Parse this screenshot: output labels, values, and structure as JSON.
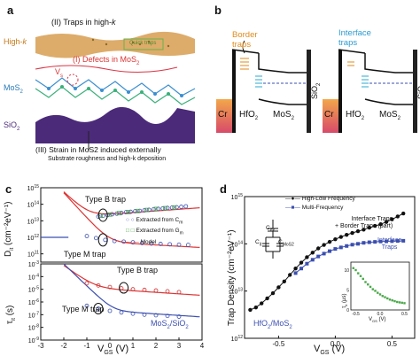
{
  "panels": {
    "a": {
      "label": "a",
      "traps_highk": "(II) Traps in high-",
      "traps_highk_k": "k",
      "highk": "High-",
      "highk_k": "k",
      "quick_traps": "Quick traps",
      "defects": "(I) Defects in MoS",
      "defects_sub": "2",
      "vs": "V",
      "vs_sub": "s",
      "mos2": "MoS",
      "mos2_sub": "2",
      "sio2": "SiO",
      "sio2_sub": "2",
      "strain": "(III) Strain in MoS2 induced externally",
      "strain2": "Substrate roughness and high-k deposition"
    },
    "b": {
      "label": "b",
      "border_traps": "Border traps",
      "interface_traps": "Interface traps",
      "cr": "Cr",
      "hfo2": "HfO",
      "hfo2_sub": "2",
      "mos2": "MoS",
      "mos2_sub": "2",
      "sio2": "SiO",
      "sio2_sub": "2"
    },
    "c": {
      "label": "c",
      "ylabel_top": "D",
      "ylabel_top_sub": "it",
      "ylabel_top_unit": " (cm⁻²eV⁻¹)",
      "ylabel_bot": "τ",
      "ylabel_bot_sub": "it",
      "ylabel_bot_unit": " (s)",
      "xlabel": "V",
      "xlabel_sub": "GS",
      "xlabel_unit": " (V)",
      "type_b_top": "Type B trap",
      "type_m_top": "Type M trap",
      "type_b_bot": "Type B trap",
      "type_m_bot": "Type M trap",
      "legend_cm": "Extracted from C",
      "legend_cm_sub": "m",
      "legend_gm": "Extracted from G",
      "legend_gm_sub": "m",
      "legend_model": "Model",
      "material": "MoS",
      "material_sub": "2",
      "material2": "/SiO",
      "material2_sub": "2",
      "yticks_top": [
        "10",
        "10",
        "10",
        "10",
        "10"
      ],
      "yticks_top_exp": [
        "15",
        "14",
        "13",
        "12",
        "11"
      ],
      "yticks_bot": [
        "10",
        "10",
        "10",
        "10",
        "10",
        "10",
        "10"
      ],
      "yticks_bot_exp": [
        "-3",
        "-4",
        "-5",
        "-6",
        "-7",
        "-8",
        "-9"
      ],
      "xticks": [
        "-3",
        "-2",
        "-1",
        "0",
        "1",
        "2",
        "3",
        "4"
      ]
    },
    "d": {
      "label": "d",
      "ylabel": "Trap Density (cm⁻²eV⁻¹)",
      "xlabel": "V",
      "xlabel_sub": "GS",
      "xlabel_unit": " (V)",
      "legend_hl": "High-Low Frequency",
      "legend_mf": "Multi-Frequency",
      "int_border": "Interface Traps",
      "int_border2": "+ Border Traps (part)",
      "interface": "Interface",
      "interface2": "Traps",
      "cox": "C",
      "cox_sub": "ox",
      "cit": "C",
      "cit_sub": "it",
      "cmos": "C",
      "cmos_sub": "MoS2",
      "material": "HfO",
      "material_sub": "2",
      "material2": "/MoS",
      "material2_sub": "2",
      "yticks": [
        "10",
        "10",
        "10",
        "10"
      ],
      "yticks_exp": [
        "15",
        "14",
        "13",
        "12"
      ],
      "xticks": [
        "-0.5",
        "0.0",
        "0.5"
      ],
      "inset_ylabel": "τ",
      "inset_ylabel_sub": "it",
      "inset_ylabel_unit": " (μs)",
      "inset_xlabel": "V",
      "inset_xlabel_sub": "GS",
      "inset_xlabel_unit": " (V)",
      "inset_yticks": [
        "10",
        "5",
        "0"
      ],
      "inset_xticks": [
        "-0.5",
        "0.0",
        "0.5"
      ]
    }
  },
  "chart_data": [
    {
      "type": "scatter",
      "panel": "c-top",
      "ylabel": "Dit (cm-2eV-1)",
      "xlabel": "VGS (V)",
      "xlim": [
        -3,
        4
      ],
      "ylim_log10": [
        10.5,
        15
      ],
      "series": [
        {
          "name": "Extracted from Cm",
          "marker": "open-circle",
          "color": "#3b4fb0",
          "x": [
            -0.5,
            -0.3,
            -0.1,
            0.1,
            0.3,
            0.5,
            0.7,
            0.9,
            1.1,
            1.3,
            1.5,
            1.7,
            1.9,
            2.1,
            2.3,
            2.5,
            2.7,
            2.9,
            3.1,
            3.3
          ],
          "y": [
            18000000000000.0,
            20000000000000.0,
            22000000000000.0,
            25000000000000.0,
            27000000000000.0,
            30000000000000.0,
            33000000000000.0,
            35000000000000.0,
            38000000000000.0,
            40000000000000.0,
            43000000000000.0,
            46000000000000.0,
            50000000000000.0,
            53000000000000.0,
            56000000000000.0,
            60000000000000.0,
            63000000000000.0,
            66000000000000.0,
            70000000000000.0,
            75000000000000.0
          ]
        },
        {
          "name": "Extracted from Gm",
          "marker": "open-square",
          "color": "#4aa84a",
          "x": [
            -0.4,
            0.0,
            0.4,
            0.8,
            1.2,
            1.6,
            2.0,
            2.4,
            2.8
          ],
          "y": [
            20000000000000.0,
            24000000000000.0,
            29000000000000.0,
            34000000000000.0,
            39000000000000.0,
            45000000000000.0,
            52000000000000.0,
            58000000000000.0,
            64000000000000.0
          ]
        },
        {
          "name": "Extracted from Cm (Type M)",
          "marker": "open-circle",
          "color": "#3b4fb0",
          "x": [
            -1.0,
            -0.6,
            -0.2,
            0.2,
            0.6,
            1.0,
            1.4,
            1.8,
            2.2,
            2.6,
            3.0,
            3.4
          ],
          "y": [
            1200000000000.0,
            900000000000.0,
            700000000000.0,
            600000000000.0,
            550000000000.0,
            500000000000.0,
            450000000000.0,
            420000000000.0,
            400000000000.0,
            380000000000.0,
            360000000000.0,
            350000000000.0
          ]
        }
      ]
    },
    {
      "type": "scatter",
      "panel": "c-bottom",
      "ylabel": "τit (s)",
      "xlabel": "VGS (V)",
      "xlim": [
        -3,
        4
      ],
      "ylim_log10": [
        -9,
        -3
      ],
      "series": [
        {
          "name": "Type B trap",
          "marker": "open-circle",
          "color": "#cc3333",
          "x": [
            -1.0,
            -0.5,
            0.0,
            0.5,
            1.0,
            1.5,
            2.0,
            2.5,
            3.0
          ],
          "y": [
            3e-05,
            2e-05,
            1.5e-05,
            1.2e-05,
            1e-05,
            9e-06,
            8e-06,
            7e-06,
            6e-06
          ]
        },
        {
          "name": "Type M trap",
          "marker": "open-circle",
          "color": "#3b4fb0",
          "x": [
            -1.0,
            -0.5,
            0.0,
            0.5,
            1.0,
            1.5,
            2.0,
            2.5,
            3.0
          ],
          "y": [
            5e-07,
            3e-07,
            2e-07,
            1.5e-07,
            1.2e-07,
            1e-07,
            9e-08,
            8e-08,
            7e-08
          ]
        }
      ]
    },
    {
      "type": "line",
      "panel": "d",
      "ylabel": "Trap Density (cm-2eV-1)",
      "xlabel": "VGS (V)",
      "xlim": [
        -0.8,
        0.7
      ],
      "ylim_log10": [
        12,
        15
      ],
      "series": [
        {
          "name": "High-Low Frequency",
          "color": "#111111",
          "x": [
            -0.75,
            -0.7,
            -0.65,
            -0.6,
            -0.55,
            -0.5,
            -0.45,
            -0.4,
            -0.35,
            -0.3,
            -0.25,
            -0.2,
            -0.15,
            -0.1,
            -0.05,
            0.0,
            0.05,
            0.1,
            0.15,
            0.2,
            0.25,
            0.3,
            0.35,
            0.4,
            0.45,
            0.5,
            0.55,
            0.6
          ],
          "y": [
            4000000000000.0,
            4500000000000.0,
            5500000000000.0,
            7000000000000.0,
            9000000000000.0,
            12000000000000.0,
            16000000000000.0,
            22000000000000.0,
            30000000000000.0,
            40000000000000.0,
            52000000000000.0,
            65000000000000.0,
            80000000000000.0,
            95000000000000.0,
            110000000000000.0,
            125000000000000.0,
            140000000000000.0,
            155000000000000.0,
            170000000000000.0,
            185000000000000.0,
            200000000000000.0,
            220000000000000.0,
            240000000000000.0,
            260000000000000.0,
            290000000000000.0,
            330000000000000.0,
            380000000000000.0,
            440000000000000.0
          ]
        },
        {
          "name": "Multi-Frequency",
          "color": "#3b4fb0",
          "x": [
            -0.35,
            -0.3,
            -0.25,
            -0.2,
            -0.15,
            -0.1,
            -0.05,
            0.0,
            0.05,
            0.1,
            0.15,
            0.2,
            0.25,
            0.3,
            0.35,
            0.4,
            0.45,
            0.5,
            0.55,
            0.6
          ],
          "y": [
            24000000000000.0,
            30000000000000.0,
            38000000000000.0,
            46000000000000.0,
            54000000000000.0,
            62000000000000.0,
            70000000000000.0,
            78000000000000.0,
            84000000000000.0,
            90000000000000.0,
            96000000000000.0,
            100000000000000.0,
            105000000000000.0,
            108000000000000.0,
            110000000000000.0,
            112000000000000.0,
            113000000000000.0,
            114000000000000.0,
            115000000000000.0,
            116000000000000.0
          ]
        }
      ]
    },
    {
      "type": "scatter",
      "panel": "d-inset",
      "ylabel": "τit (μs)",
      "xlabel": "VGS (V)",
      "xlim": [
        -0.6,
        0.6
      ],
      "ylim": [
        0,
        12
      ],
      "series": [
        {
          "name": "τit",
          "color": "#4aa84a",
          "x": [
            -0.55,
            -0.5,
            -0.45,
            -0.4,
            -0.35,
            -0.3,
            -0.25,
            -0.2,
            -0.15,
            -0.1,
            -0.05,
            0.0,
            0.05,
            0.1,
            0.15,
            0.2,
            0.25,
            0.3,
            0.35,
            0.4,
            0.45,
            0.5
          ],
          "y": [
            10.5,
            10,
            9.2,
            8.5,
            7.8,
            7.0,
            6.4,
            5.8,
            5.2,
            4.8,
            4.3,
            3.9,
            3.5,
            3.2,
            2.9,
            2.6,
            2.4,
            2.2,
            2.0,
            1.9,
            1.8,
            1.7
          ]
        }
      ]
    }
  ]
}
